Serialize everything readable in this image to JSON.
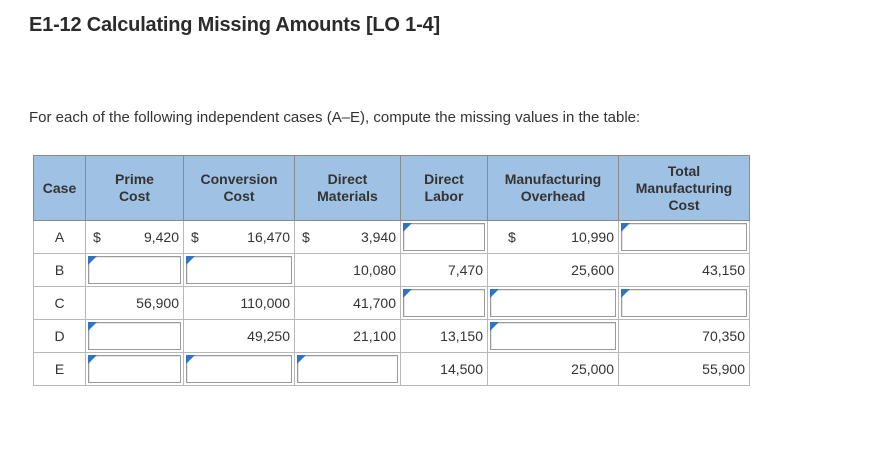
{
  "title": "E1-12 Calculating Missing Amounts [LO 1-4]",
  "instructions": "For each of the following independent cases (A–E), compute the missing values in the table:",
  "columns": {
    "case": "Case",
    "prime_cost": [
      "Prime",
      "Cost"
    ],
    "conversion_cost": [
      "Conversion",
      "Cost"
    ],
    "direct_materials": [
      "Direct",
      "Materials"
    ],
    "direct_labor": [
      "Direct",
      "Labor"
    ],
    "manufacturing_overhead": [
      "Manufacturing",
      "Overhead"
    ],
    "total_manufacturing_cost": [
      "Total",
      "Manufacturing",
      "Cost"
    ]
  },
  "currency_symbol": "$",
  "rows": [
    {
      "case": "A",
      "prime_cost": "9,420",
      "conversion_cost": "16,470",
      "direct_materials": "3,940",
      "direct_labor": "",
      "manufacturing_overhead": "10,990",
      "total_manufacturing_cost": ""
    },
    {
      "case": "B",
      "prime_cost": "",
      "conversion_cost": "",
      "direct_materials": "10,080",
      "direct_labor": "7,470",
      "manufacturing_overhead": "25,600",
      "total_manufacturing_cost": "43,150"
    },
    {
      "case": "C",
      "prime_cost": "56,900",
      "conversion_cost": "110,000",
      "direct_materials": "41,700",
      "direct_labor": "",
      "manufacturing_overhead": "",
      "total_manufacturing_cost": ""
    },
    {
      "case": "D",
      "prime_cost": "",
      "conversion_cost": "49,250",
      "direct_materials": "21,100",
      "direct_labor": "13,150",
      "manufacturing_overhead": "",
      "total_manufacturing_cost": "70,350"
    },
    {
      "case": "E",
      "prime_cost": "",
      "conversion_cost": "",
      "direct_materials": "",
      "direct_labor": "14,500",
      "manufacturing_overhead": "25,000",
      "total_manufacturing_cost": "55,900"
    }
  ]
}
